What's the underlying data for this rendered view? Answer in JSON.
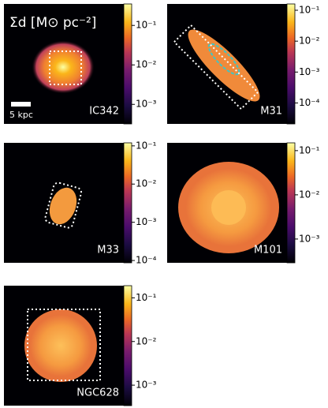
{
  "figure": {
    "title": "Σd [M⊙ pc⁻²]",
    "scale_bar": "5 kpc",
    "panels": [
      {
        "name": "IC342",
        "colorbar": {
          "log": true,
          "lim": [
            0.00032,
            0.35
          ],
          "ticks": [
            {
              "value": 0.1,
              "label": "10⁻¹"
            },
            {
              "value": 0.01,
              "label": "10⁻²"
            },
            {
              "value": 0.001,
              "label": "10⁻³"
            }
          ]
        }
      },
      {
        "name": "M31",
        "colorbar": {
          "log": true,
          "lim": [
            2.1e-05,
            0.16
          ],
          "ticks": [
            {
              "value": 0.1,
              "label": "10⁻¹"
            },
            {
              "value": 0.01,
              "label": "10⁻²"
            },
            {
              "value": 0.001,
              "label": "10⁻³"
            },
            {
              "value": 0.0001,
              "label": "10⁻⁴"
            }
          ]
        }
      },
      {
        "name": "M33",
        "colorbar": {
          "log": true,
          "lim": [
            8.7e-05,
            0.12
          ],
          "ticks": [
            {
              "value": 0.1,
              "label": "10⁻¹"
            },
            {
              "value": 0.01,
              "label": "10⁻²"
            },
            {
              "value": 0.001,
              "label": "10⁻³"
            },
            {
              "value": 0.0001,
              "label": "10⁻⁴"
            }
          ]
        }
      },
      {
        "name": "M101",
        "colorbar": {
          "log": true,
          "lim": [
            0.00029,
            0.15
          ],
          "ticks": [
            {
              "value": 0.1,
              "label": "10⁻¹"
            },
            {
              "value": 0.01,
              "label": "10⁻²"
            },
            {
              "value": 0.001,
              "label": "10⁻³"
            }
          ]
        }
      },
      {
        "name": "NGC628",
        "colorbar": {
          "log": true,
          "lim": [
            0.00034,
            0.19
          ],
          "ticks": [
            {
              "value": 0.1,
              "label": "10⁻¹"
            },
            {
              "value": 0.01,
              "label": "10⁻²"
            },
            {
              "value": 0.001,
              "label": "10⁻³"
            }
          ]
        }
      }
    ]
  }
}
